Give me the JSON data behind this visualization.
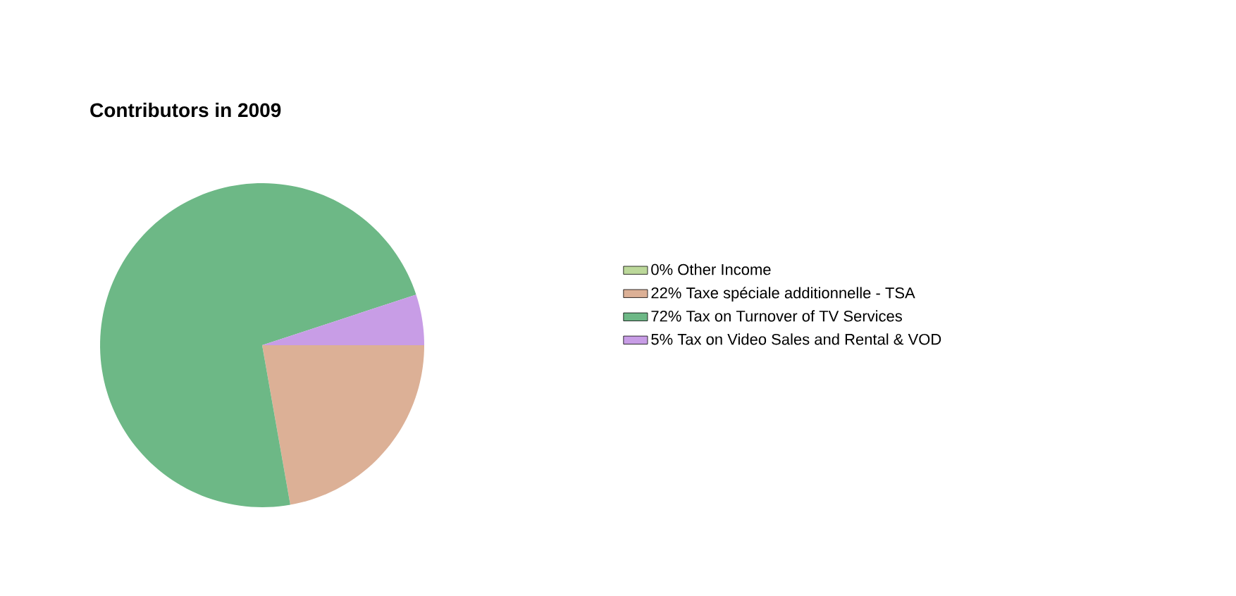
{
  "chart_data": {
    "type": "pie",
    "title": "Contributors in 2009",
    "categories": [
      "0% Other Income",
      "22% Taxe spéciale additionnelle - TSA",
      "72% Tax on Turnover of TV Services",
      "5% Tax on Video Sales  and Rental & VOD"
    ],
    "values": [
      0,
      22,
      72,
      5
    ],
    "colors": [
      "#bcd89a",
      "#dcb096",
      "#6db886",
      "#c89de6"
    ],
    "legend": "right"
  }
}
